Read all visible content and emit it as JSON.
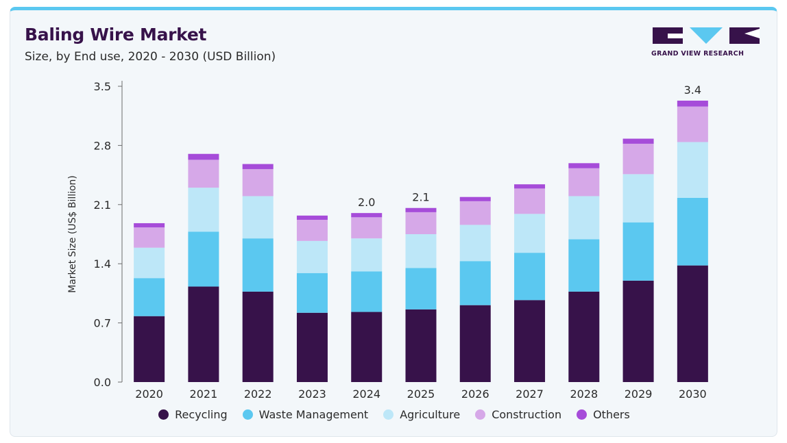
{
  "header": {
    "title": "Baling Wire Market",
    "subtitle": "Size, by End use, 2020 - 2030 (USD Billion)"
  },
  "logo": {
    "text": "GRAND VIEW RESEARCH",
    "icon": "gvr-logo-icon"
  },
  "chart_data": {
    "type": "bar",
    "stacked": true,
    "title": "Baling Wire Market",
    "subtitle": "Size, by End use, 2020 - 2030 (USD Billion)",
    "xlabel": "",
    "ylabel": "Market Size (US$ Billion)",
    "ylim": [
      0,
      3.5
    ],
    "yticks": [
      "0.0",
      "0.7",
      "1.4",
      "2.1",
      "2.8",
      "3.5"
    ],
    "categories": [
      "2020",
      "2021",
      "2022",
      "2023",
      "2024",
      "2025",
      "2026",
      "2027",
      "2028",
      "2029",
      "2030"
    ],
    "series": [
      {
        "name": "Recycling",
        "color": "#37124a",
        "values": [
          0.78,
          1.13,
          1.07,
          0.82,
          0.83,
          0.86,
          0.91,
          0.97,
          1.07,
          1.2,
          1.38
        ]
      },
      {
        "name": "Waste Management",
        "color": "#5bc8f0",
        "values": [
          0.45,
          0.65,
          0.63,
          0.47,
          0.48,
          0.49,
          0.52,
          0.56,
          0.62,
          0.69,
          0.8
        ]
      },
      {
        "name": "Agriculture",
        "color": "#bde7f8",
        "values": [
          0.36,
          0.52,
          0.5,
          0.38,
          0.39,
          0.4,
          0.43,
          0.46,
          0.51,
          0.57,
          0.66
        ]
      },
      {
        "name": "Construction",
        "color": "#d6a8e8",
        "values": [
          0.24,
          0.33,
          0.32,
          0.25,
          0.25,
          0.26,
          0.28,
          0.3,
          0.33,
          0.36,
          0.42
        ]
      },
      {
        "name": "Others",
        "color": "#a64cd9",
        "values": [
          0.05,
          0.07,
          0.06,
          0.05,
          0.05,
          0.05,
          0.05,
          0.05,
          0.06,
          0.06,
          0.07
        ]
      }
    ],
    "totals_labels": [
      {
        "category": "2024",
        "label": "2.0"
      },
      {
        "category": "2025",
        "label": "2.1"
      },
      {
        "category": "2030",
        "label": "3.4"
      }
    ],
    "grid": false,
    "legend_position": "bottom"
  }
}
